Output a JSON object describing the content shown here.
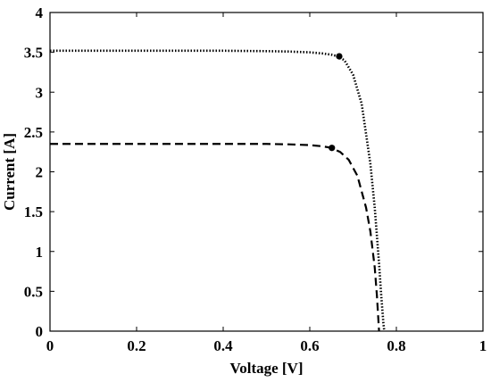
{
  "chart_data": {
    "type": "line",
    "title": "",
    "xlabel": "Voltage [V]",
    "ylabel": "Current [A]",
    "xlim": [
      0,
      1
    ],
    "ylim": [
      0,
      4
    ],
    "xticks": [
      0,
      0.2,
      0.4,
      0.6,
      0.8,
      1
    ],
    "xtick_labels": [
      "0",
      "0.2",
      "0.4",
      "0.6",
      "0.8",
      "1"
    ],
    "yticks": [
      0,
      0.5,
      1,
      1.5,
      2,
      2.5,
      3,
      3.5,
      4
    ],
    "ytick_labels": [
      "0",
      "0.5",
      "1",
      "1.5",
      "2",
      "2.5",
      "3",
      "3.5",
      "4"
    ],
    "grid": false,
    "legend": "none",
    "series": [
      {
        "line_style": "dotted",
        "color": "#000000",
        "x": [
          0,
          0.1,
          0.2,
          0.3,
          0.4,
          0.5,
          0.55,
          0.6,
          0.63,
          0.65,
          0.665,
          0.68,
          0.7,
          0.72,
          0.74,
          0.75,
          0.76,
          0.765,
          0.77,
          0.772
        ],
        "y": [
          3.52,
          3.52,
          3.52,
          3.52,
          3.52,
          3.515,
          3.51,
          3.5,
          3.485,
          3.47,
          3.45,
          3.4,
          3.22,
          2.85,
          2.1,
          1.55,
          0.85,
          0.45,
          0.1,
          0
        ],
        "marker": {
          "x": 0.668,
          "y": 3.45
        }
      },
      {
        "line_style": "dashed",
        "color": "#000000",
        "x": [
          0,
          0.1,
          0.2,
          0.3,
          0.4,
          0.5,
          0.55,
          0.6,
          0.63,
          0.65,
          0.67,
          0.69,
          0.71,
          0.73,
          0.74,
          0.75,
          0.755,
          0.76
        ],
        "y": [
          2.35,
          2.35,
          2.35,
          2.35,
          2.35,
          2.35,
          2.345,
          2.335,
          2.32,
          2.3,
          2.25,
          2.15,
          1.95,
          1.55,
          1.25,
          0.8,
          0.45,
          0
        ],
        "marker": {
          "x": 0.651,
          "y": 2.3
        }
      }
    ]
  }
}
